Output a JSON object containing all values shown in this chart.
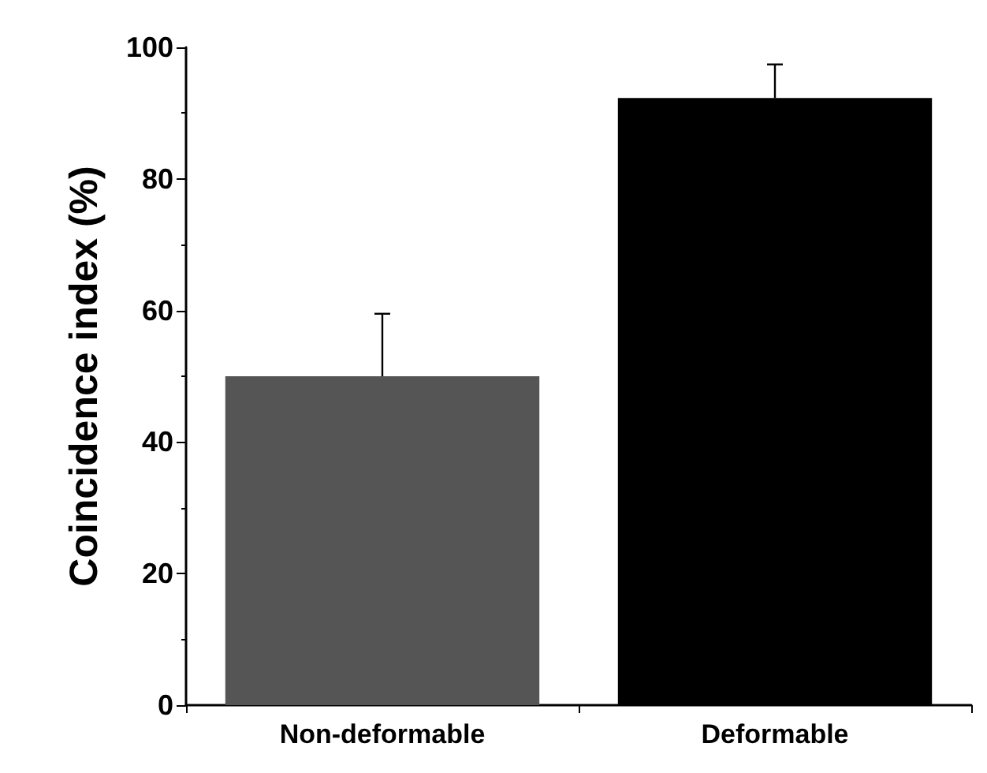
{
  "chart_data": {
    "type": "bar",
    "ylabel": "Coincidence index (%)",
    "categories": [
      "Non-deformable",
      "Deformable"
    ],
    "values": [
      50,
      92.3
    ],
    "colors": [
      "#555555",
      "#000000"
    ],
    "errors": [
      [
        50,
        59.5
      ],
      [
        92.3,
        97.4
      ]
    ],
    "ylim": [
      0,
      100
    ],
    "yticks": [
      0,
      20,
      40,
      60,
      80,
      100
    ],
    "grid": false
  }
}
